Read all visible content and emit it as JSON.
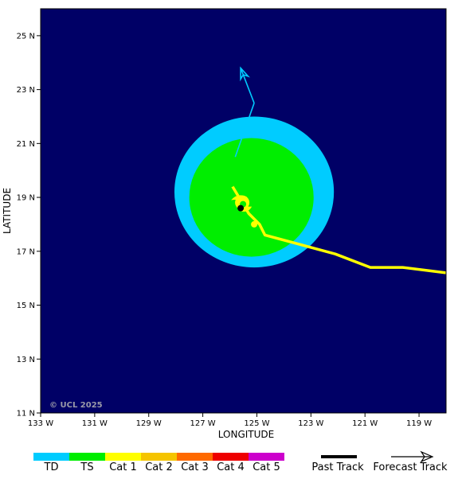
{
  "map": {
    "lon_range": [
      -133,
      -118
    ],
    "lat_range": [
      11,
      26
    ],
    "background_color": "#000066",
    "copyright": "© UCL 2025",
    "x_ticks": [
      {
        "value": -133,
        "label": "133 W"
      },
      {
        "value": -131,
        "label": "131 W"
      },
      {
        "value": -129,
        "label": "129 W"
      },
      {
        "value": -127,
        "label": "127 W"
      },
      {
        "value": -125,
        "label": "125 W"
      },
      {
        "value": -123,
        "label": "123 W"
      },
      {
        "value": -121,
        "label": "121 W"
      },
      {
        "value": -119,
        "label": "119 W"
      }
    ],
    "y_ticks": [
      {
        "value": 25,
        "label": "25 N"
      },
      {
        "value": 23,
        "label": "23 N"
      },
      {
        "value": 21,
        "label": "21 N"
      },
      {
        "value": 19,
        "label": "19 N"
      },
      {
        "value": 17,
        "label": "17 N"
      },
      {
        "value": 15,
        "label": "15 N"
      },
      {
        "value": 13,
        "label": "13 N"
      },
      {
        "value": 11,
        "label": "11 N"
      }
    ],
    "xlabel": "LONGITUDE",
    "ylabel": "LATITUDE",
    "wind_fields": [
      {
        "category": "TD",
        "center": [
          -125.1,
          19.2
        ],
        "radius_lon": 2.95,
        "radius_lat": 2.8,
        "color": "#00ccff"
      },
      {
        "category": "TS",
        "center": [
          -125.2,
          19.0
        ],
        "radius_lon": 2.3,
        "radius_lat": 2.2,
        "color": "#00ee00"
      }
    ],
    "past_track": [
      [
        -118,
        16.2
      ],
      [
        -119.6,
        16.4
      ],
      [
        -120.8,
        16.4
      ],
      [
        -122.1,
        16.9
      ],
      [
        -124.7,
        17.6
      ],
      [
        -124.9,
        18.0
      ],
      [
        -125.3,
        18.4
      ],
      [
        -125.9,
        19.4
      ]
    ],
    "past_track_color": "#ffff00",
    "forecast_track": [
      {
        "lon": -125.9,
        "lat": 19.4,
        "color": "#00ee00"
      },
      {
        "lon": -125.8,
        "lat": 20.5,
        "color": "#00ee00"
      },
      {
        "lon": -125.1,
        "lat": 22.5,
        "color": "#00ccff"
      },
      {
        "lon": -125.6,
        "lat": 23.8,
        "color": "#00ccff"
      }
    ],
    "current_position": [
      -125.6,
      18.6
    ],
    "position_marker_point": [
      -125.1,
      18.0
    ]
  },
  "legend": {
    "categories": [
      {
        "label": "TD",
        "color": "#00ccff"
      },
      {
        "label": "TS",
        "color": "#00ee00"
      },
      {
        "label": "Cat 1",
        "color": "#ffff00"
      },
      {
        "label": "Cat 2",
        "color": "#f5c400"
      },
      {
        "label": "Cat 3",
        "color": "#ff6a00"
      },
      {
        "label": "Cat 4",
        "color": "#ee0000"
      },
      {
        "label": "Cat 5",
        "color": "#cc00cc"
      }
    ],
    "past_track_label": "Past Track",
    "forecast_track_label": "Forecast Track"
  }
}
